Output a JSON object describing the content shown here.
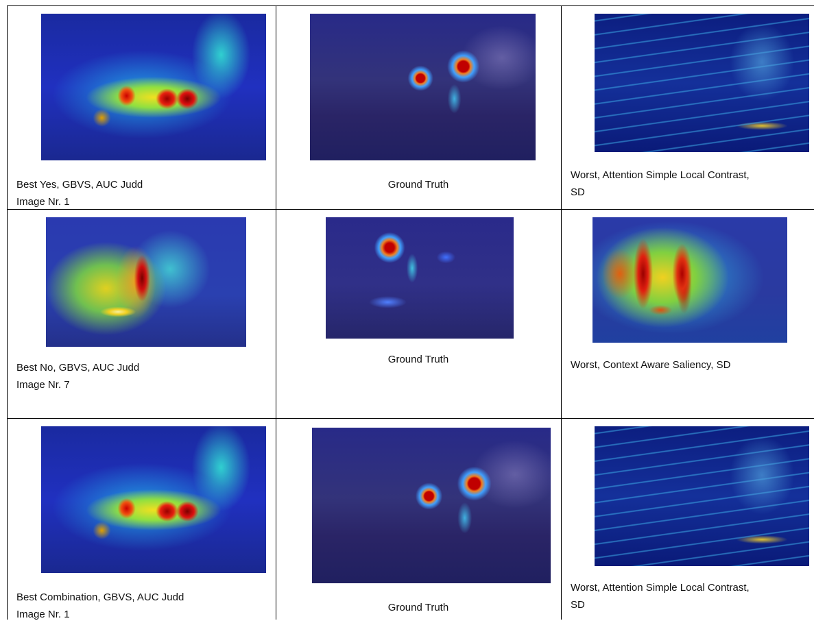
{
  "table": {
    "rows": [
      [
        [
          "Best Yes, GBVS,  AUC Judd",
          "Image Nr. 1"
        ],
        [
          "Ground Truth"
        ],
        [
          "Worst, Attention Simple Local Contrast,",
          "SD"
        ]
      ],
      [
        [
          "Best No, GBVS, AUC Judd",
          "Image Nr. 7"
        ],
        [
          "Ground Truth"
        ],
        [
          "Worst, Context Aware Saliency, SD"
        ]
      ],
      [
        [
          "Best Combination,   GBVS, AUC Judd",
          "Image Nr. 1"
        ],
        [
          "Ground Truth"
        ],
        [
          "Worst, Attention Simple Local Contrast,",
          "SD"
        ]
      ]
    ]
  }
}
